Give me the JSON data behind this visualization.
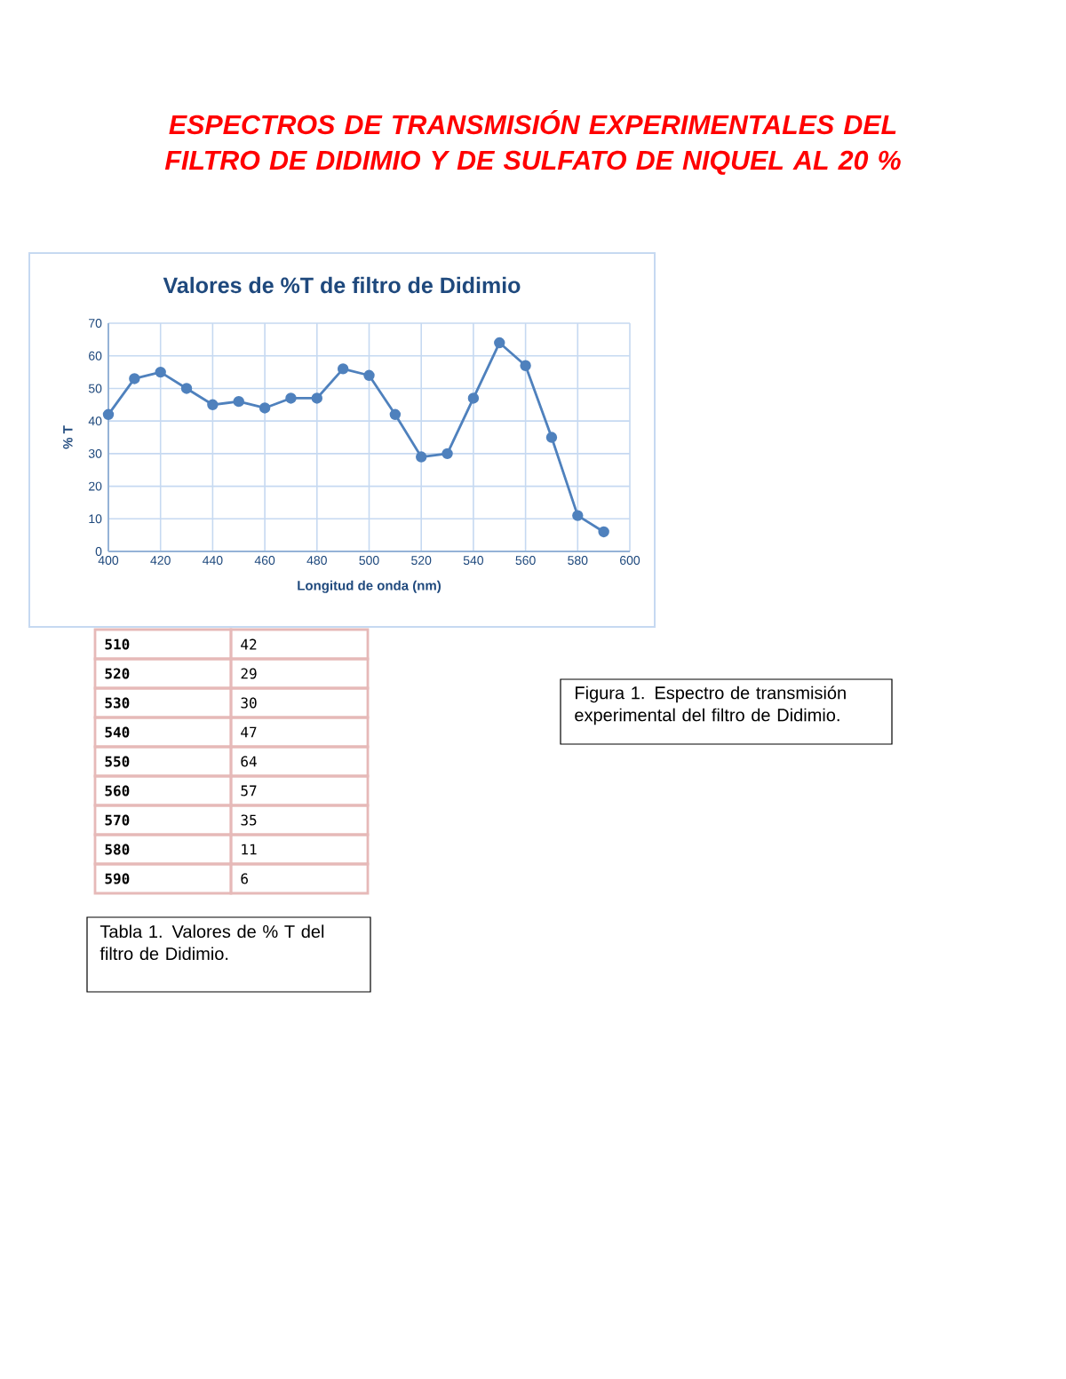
{
  "chart_data": {
    "type": "line",
    "title": "Valores de %T de filtro de Didimio",
    "xlabel": "Longitud de onda (nm)",
    "ylabel": "% T",
    "x": [
      400,
      410,
      420,
      430,
      440,
      450,
      460,
      470,
      480,
      490,
      500,
      510,
      520,
      530,
      540,
      550,
      560,
      570,
      580,
      590
    ],
    "values": [
      42,
      53,
      55,
      50,
      45,
      46,
      44,
      47,
      47,
      56,
      54,
      42,
      29,
      30,
      47,
      64,
      57,
      35,
      11,
      6
    ],
    "color": "#4f81bd",
    "marker": "circle",
    "line_style": "solid",
    "grid": true,
    "xlim": [
      400,
      600
    ],
    "ylim": [
      0,
      70
    ],
    "xticks": [
      400,
      420,
      440,
      460,
      480,
      500,
      520,
      540,
      560,
      580,
      600
    ],
    "yticks": [
      0,
      10,
      20,
      30,
      40,
      50,
      60,
      70
    ],
    "annotations": [
      "ESPECTROS DE TRANSMISIÓN EXPERIMENTALES DEL FILTRO DE DIDIMIO Y DE SULFATO DE NIQUEL AL 20 %",
      "Figura 1. Espectro de transmisión experimental del filtro de Didimio.",
      "Tabla 1. Valores de % T del filtro de Didimio.",
      "510",
      "42",
      "520",
      "29",
      "530",
      "30",
      "540",
      "47",
      "550",
      "64",
      "560",
      "57",
      "570",
      "35",
      "580",
      "11",
      "590",
      "6"
    ]
  }
}
